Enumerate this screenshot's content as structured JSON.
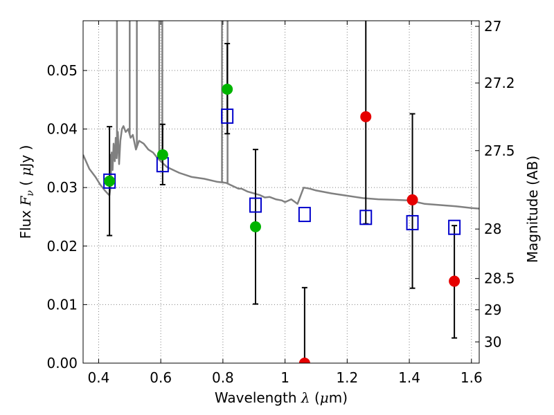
{
  "chart_data": {
    "type": "scatter",
    "xlabel": "Wavelength  λ (μm)",
    "xlabel_parts": [
      "Wavelength  ",
      "λ",
      " (",
      "μ",
      "m)"
    ],
    "ylabel": "Flux  Fν  ( μJy )",
    "ylabel_parts": [
      "Flux  ",
      "F",
      "ν",
      "  ( ",
      "μ",
      "Jy )"
    ],
    "y2label": "Magnitude (AB)",
    "xlim": [
      0.35,
      1.625
    ],
    "ylim": [
      0.0,
      0.0585
    ],
    "x_ticks": [
      0.4,
      0.6,
      0.8,
      1.0,
      1.2,
      1.4,
      1.6
    ],
    "x_tick_labels": [
      "0.4",
      "0.6",
      "0.8",
      "1",
      "1.2",
      "1.4",
      "1.6"
    ],
    "y_ticks": [
      0.0,
      0.01,
      0.02,
      0.03,
      0.04,
      0.05
    ],
    "y_tick_labels": [
      "0.00",
      "0.01",
      "0.02",
      "0.03",
      "0.04",
      "0.05"
    ],
    "y2_ticks": [
      27,
      27.2,
      27.5,
      28,
      28.5,
      29,
      30
    ],
    "y2_tick_labels": [
      "27",
      "27.2",
      "27.5",
      "28",
      "28.5",
      "29",
      "30"
    ],
    "grid": true,
    "colors": {
      "model": "#808080",
      "model_points": "#0000cc",
      "green": "#00b400",
      "red": "#e60000",
      "errorbar": "#000000",
      "grid": "#808080"
    },
    "series": [
      {
        "name": "Observed flux (green)",
        "x": [
          0.435,
          0.606,
          0.814,
          0.905
        ],
        "y": [
          0.0311,
          0.0356,
          0.0468,
          0.0233
        ],
        "yerr_low": [
          0.0218,
          0.0305,
          0.0392,
          0.0101
        ],
        "yerr_high": [
          0.0404,
          0.0408,
          0.0546,
          0.0365
        ]
      },
      {
        "name": "Observed flux (red)",
        "x": [
          1.063,
          1.26,
          1.41,
          1.545
        ],
        "y": [
          0.0,
          0.0421,
          0.0279,
          0.014
        ],
        "yerr_low": [
          0.0,
          0.0238,
          0.0128,
          0.0043
        ],
        "yerr_high": [
          0.0129,
          0.0585,
          0.0426,
          0.0235
        ]
      },
      {
        "name": "Model band flux",
        "x": [
          0.435,
          0.606,
          0.814,
          0.905,
          1.063,
          1.26,
          1.41,
          1.545
        ],
        "y": [
          0.0311,
          0.0339,
          0.0422,
          0.027,
          0.0254,
          0.0249,
          0.024,
          0.0232
        ]
      },
      {
        "name": "Model SED",
        "x": [
          0.35,
          0.37,
          0.39,
          0.405,
          0.42,
          0.432,
          0.435,
          0.438,
          0.442,
          0.445,
          0.448,
          0.452,
          0.455,
          0.458,
          0.462,
          0.466,
          0.47,
          0.475,
          0.48,
          0.487,
          0.495,
          0.503,
          0.51,
          0.52,
          0.53,
          0.545,
          0.56,
          0.575,
          0.59,
          0.6,
          0.61,
          0.62,
          0.64,
          0.66,
          0.7,
          0.74,
          0.78,
          0.81,
          0.85,
          0.86,
          0.88,
          0.9,
          0.92,
          0.935,
          0.95,
          0.97,
          0.99,
          1.0,
          1.02,
          1.04,
          1.06,
          1.08,
          1.1,
          1.15,
          1.2,
          1.25,
          1.3,
          1.35,
          1.4,
          1.45,
          1.5,
          1.55,
          1.6,
          1.625
        ],
        "y": [
          0.0356,
          0.0332,
          0.0318,
          0.0305,
          0.0295,
          0.0288,
          0.0287,
          0.03,
          0.036,
          0.033,
          0.0375,
          0.0345,
          0.0385,
          0.035,
          0.0395,
          0.034,
          0.038,
          0.04,
          0.0405,
          0.0395,
          0.04,
          0.0385,
          0.039,
          0.0365,
          0.038,
          0.0375,
          0.0365,
          0.036,
          0.035,
          0.0345,
          0.034,
          0.0335,
          0.033,
          0.0325,
          0.0318,
          0.0315,
          0.031,
          0.0308,
          0.0298,
          0.0298,
          0.0293,
          0.029,
          0.0287,
          0.0283,
          0.0284,
          0.028,
          0.0278,
          0.0275,
          0.028,
          0.0272,
          0.03,
          0.0298,
          0.0295,
          0.029,
          0.0286,
          0.0282,
          0.028,
          0.0279,
          0.0278,
          0.0272,
          0.027,
          0.0268,
          0.0265,
          0.0264
        ]
      }
    ],
    "model_emission_lines": [
      {
        "x": 0.437,
        "y": 0.0355
      },
      {
        "x": 0.459,
        "y": 0.0585
      },
      {
        "x": 0.5,
        "y": 0.0585
      },
      {
        "x": 0.523,
        "y": 0.0585
      },
      {
        "x": 0.595,
        "y": 0.0585
      },
      {
        "x": 0.605,
        "y": 0.0585
      },
      {
        "x": 0.797,
        "y": 0.0585
      },
      {
        "x": 0.815,
        "y": 0.0585
      }
    ]
  }
}
